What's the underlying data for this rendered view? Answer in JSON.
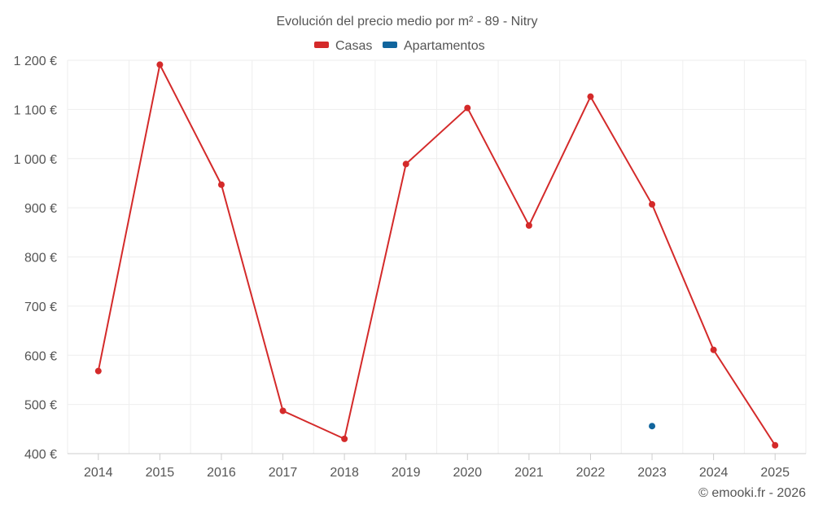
{
  "chart_data": {
    "type": "line",
    "title": "Evolución del precio medio por m² - 89 - Nitry",
    "xlabel": "",
    "ylabel": "",
    "categories": [
      "2014",
      "2015",
      "2016",
      "2017",
      "2018",
      "2019",
      "2020",
      "2021",
      "2022",
      "2023",
      "2024",
      "2025"
    ],
    "ylim": [
      400,
      1200
    ],
    "yticks": [
      400,
      500,
      600,
      700,
      800,
      900,
      1000,
      1100,
      1200
    ],
    "ytick_labels": [
      "400 €",
      "500 €",
      "600 €",
      "700 €",
      "800 €",
      "900 €",
      "1 000 €",
      "1 100 €",
      "1 200 €"
    ],
    "grid": true,
    "legend_position": "top-center",
    "series": [
      {
        "name": "Casas",
        "color": "#d42a2a",
        "values": [
          568,
          1191,
          947,
          487,
          430,
          989,
          1103,
          864,
          1126,
          907,
          611,
          417
        ]
      },
      {
        "name": "Apartamentos",
        "color": "#11659d",
        "values": [
          null,
          null,
          null,
          null,
          null,
          null,
          null,
          null,
          null,
          456,
          null,
          null
        ]
      }
    ]
  },
  "credit": "© emooki.fr - 2026"
}
